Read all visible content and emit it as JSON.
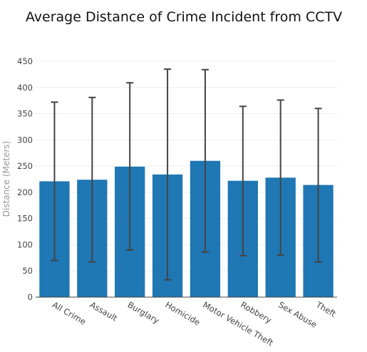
{
  "chart_data": {
    "type": "bar",
    "title": "Average Distance of Crime Incident from CCTV",
    "xlabel": "",
    "ylabel": "Distance (Meters)",
    "ylim": [
      0,
      450
    ],
    "yticks": [
      0,
      50,
      100,
      150,
      200,
      250,
      300,
      350,
      400,
      450
    ],
    "grid": true,
    "categories": [
      "All Crime",
      "Assault",
      "Burglary",
      "Homicide",
      "Motor Vehicle Theft",
      "Robbery",
      "Sex Abuse",
      "Theft"
    ],
    "values": [
      221,
      224,
      249,
      234,
      260,
      222,
      228,
      214
    ],
    "error_low": [
      70,
      67,
      90,
      33,
      86,
      79,
      80,
      67
    ],
    "error_high": [
      372,
      381,
      409,
      435,
      434,
      364,
      376,
      360
    ],
    "bar_color": "#1f77b4",
    "error_color": "#444444"
  }
}
